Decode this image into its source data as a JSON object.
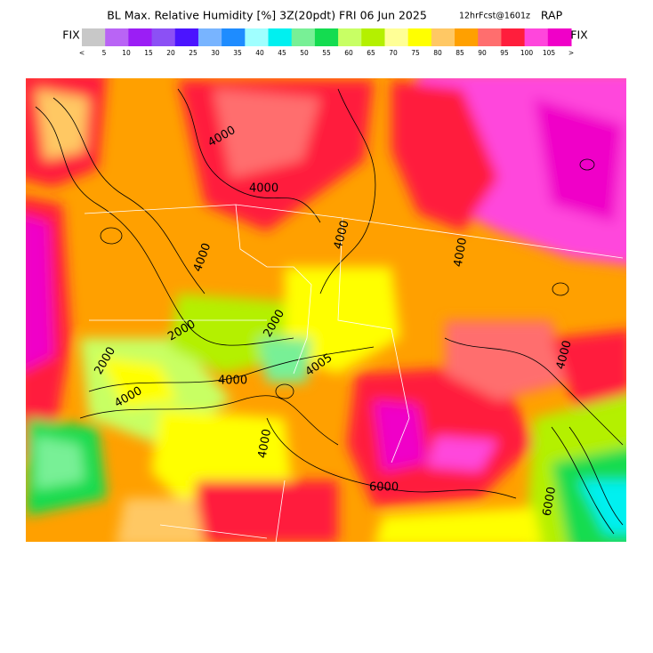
{
  "header": {
    "title": "BL Max. Relative Humidity [%] 3Z(20pdt) FRI 06 Jun 2025",
    "forecast": "12hrFcst@1601z",
    "model": "RAP"
  },
  "legend": {
    "left_label": "FIX",
    "right_label": "FIX",
    "ticks": [
      "<",
      "5",
      "10",
      "15",
      "20",
      "25",
      "30",
      "35",
      "40",
      "45",
      "50",
      "55",
      "60",
      "65",
      "70",
      "75",
      "80",
      "85",
      "90",
      "95",
      "100",
      "105",
      ">"
    ],
    "colors": [
      "#c8c8c8",
      "#b964f5",
      "#9b1ef5",
      "#8c50f5",
      "#4b14ff",
      "#78b4ff",
      "#1e8cff",
      "#a0ffff",
      "#00f0f0",
      "#78f096",
      "#14dc50",
      "#c8ff64",
      "#b4f000",
      "#ffff96",
      "#ffff00",
      "#ffc864",
      "#ffa000",
      "#ff6e6e",
      "#ff1e3c",
      "#ff46dc",
      "#f000c8"
    ]
  },
  "contour_labels": [
    "4000",
    "4000",
    "4000",
    "2000",
    "4000",
    "2000",
    "4000",
    "4000",
    "2000",
    "4000",
    "4005",
    "4000",
    "6000",
    "6000",
    "4000"
  ]
}
